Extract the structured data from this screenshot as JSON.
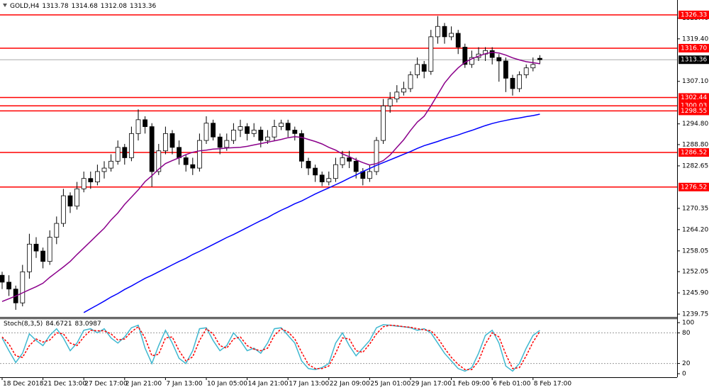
{
  "chart_data": [
    {
      "type": "candlestick",
      "title": "GOLD,H4",
      "categories": [
        "18 Dec 2018",
        null,
        null,
        null,
        null,
        null,
        "21 Dec 13:00",
        null,
        null,
        null,
        null,
        null,
        "27 Dec 17:00",
        null,
        null,
        null,
        null,
        null,
        "2 Jan 21:00",
        null,
        null,
        null,
        null,
        null,
        "7 Jan 13:00",
        null,
        null,
        null,
        null,
        null,
        "10 Jan 05:00",
        null,
        null,
        null,
        null,
        null,
        "14 Jan 21:00",
        null,
        null,
        null,
        null,
        null,
        "17 Jan 13:00",
        null,
        null,
        null,
        null,
        null,
        "22 Jan 09:00",
        null,
        null,
        null,
        null,
        null,
        "25 Jan 01:00",
        null,
        null,
        null,
        null,
        null,
        "29 Jan 17:00",
        null,
        null,
        null,
        null,
        null,
        "1 Feb 09:00",
        null,
        null,
        null,
        null,
        null,
        "6 Feb 01:00",
        null,
        null,
        null,
        null,
        null,
        "8 Feb 17:00",
        null
      ],
      "open": [
        1251,
        1249,
        1247,
        1243,
        1252,
        1260,
        1258,
        1255,
        1262,
        1266,
        1274,
        1271,
        1276,
        1279,
        1278,
        1281,
        1282,
        1284,
        1288,
        1285,
        1292,
        1296,
        1294,
        1281,
        1287,
        1292,
        1288,
        1285,
        1283,
        1282,
        1290,
        1295,
        1291,
        1288,
        1290,
        1293,
        1294,
        1292,
        1293,
        1290,
        1291,
        1294,
        1295,
        1293,
        1292,
        1284,
        1282,
        1280,
        1278,
        1279,
        1283,
        1285,
        1284,
        1281,
        1279,
        1281,
        1290,
        1300,
        1302,
        1304,
        1305,
        1309,
        1312,
        1310,
        1320,
        1323,
        1320,
        1321,
        1317,
        1312,
        1314,
        1315,
        1316,
        1314,
        1313,
        1308,
        1305,
        1309,
        1311,
        1313.78
      ],
      "high": [
        1252,
        1251,
        1248,
        1254,
        1263,
        1262,
        1259,
        1264,
        1268,
        1276,
        1275,
        1278,
        1281,
        1281,
        1283,
        1284,
        1286,
        1290,
        1289,
        1294,
        1299,
        1297,
        1295,
        1289,
        1294,
        1293,
        1290,
        1286,
        1285,
        1292,
        1297,
        1296,
        1292,
        1292,
        1295,
        1296,
        1295,
        1295,
        1294,
        1293,
        1296,
        1296,
        1296,
        1294,
        1293,
        1285,
        1283,
        1281,
        1281,
        1285,
        1287,
        1287,
        1285,
        1282,
        1283,
        1291,
        1302,
        1304,
        1306,
        1307,
        1310,
        1314,
        1313,
        1322,
        1326,
        1324,
        1323,
        1322,
        1318,
        1316,
        1317,
        1317,
        1317,
        1315,
        1314,
        1309,
        1310,
        1312,
        1314,
        1314.68
      ],
      "low": [
        1247,
        1245,
        1241,
        1242,
        1250,
        1256,
        1253,
        1254,
        1260,
        1265,
        1269,
        1270,
        1275,
        1276,
        1277,
        1279,
        1281,
        1283,
        1283,
        1284,
        1290,
        1292,
        1276.6,
        1280,
        1286,
        1286,
        1283,
        1281,
        1280,
        1281,
        1289,
        1290,
        1286,
        1287,
        1289,
        1291,
        1290,
        1291,
        1288,
        1289,
        1290,
        1293,
        1291,
        1290,
        1282,
        1280,
        1278,
        1276.8,
        1277,
        1278,
        1282,
        1282,
        1279,
        1277,
        1278,
        1280,
        1289,
        1298,
        1301,
        1303,
        1304,
        1308,
        1308,
        1309,
        1318,
        1318,
        1319,
        1315,
        1311,
        1311,
        1313,
        1313,
        1312,
        1307,
        1304,
        1303,
        1304,
        1308,
        1310,
        1312.08
      ],
      "close": [
        1249,
        1247,
        1243,
        1252,
        1260,
        1258,
        1255,
        1262,
        1266,
        1274,
        1271,
        1276,
        1279,
        1278,
        1281,
        1282,
        1284,
        1288,
        1285,
        1292,
        1296,
        1294,
        1281,
        1287,
        1292,
        1288,
        1285,
        1283,
        1282,
        1290,
        1295,
        1291,
        1288,
        1290,
        1293,
        1294,
        1292,
        1293,
        1290,
        1291,
        1294,
        1295,
        1293,
        1292,
        1284,
        1282,
        1280,
        1278,
        1279,
        1283,
        1285,
        1284,
        1281,
        1279,
        1281,
        1290,
        1300,
        1302,
        1304,
        1305,
        1309,
        1312,
        1310,
        1320,
        1323,
        1320,
        1321,
        1317,
        1312,
        1314,
        1315,
        1316,
        1314,
        1313,
        1308,
        1305,
        1309,
        1311,
        1312,
        1313.36
      ],
      "series": [
        {
          "color": "#8b008b",
          "values": [
            1243.4,
            1244.2,
            1245.0,
            1245.9,
            1246.8,
            1247.7,
            1248.7,
            1250.4,
            1251.9,
            1253.4,
            1255.0,
            1257.0,
            1258.9,
            1260.8,
            1262.7,
            1264.6,
            1267.0,
            1269.0,
            1271.5,
            1273.6,
            1275.7,
            1278.1,
            1279.8,
            1281.7,
            1283.3,
            1284.2,
            1285.0,
            1285.9,
            1286.6,
            1287.0,
            1287.2,
            1287.5,
            1287.6,
            1287.8,
            1287.9,
            1288.0,
            1288.3,
            1288.7,
            1289.1,
            1289.5,
            1289.9,
            1290.3,
            1290.8,
            1291.1,
            1290.9,
            1290.3,
            1289.7,
            1289.0,
            1288.0,
            1287.2,
            1286.1,
            1285.3,
            1284.4,
            1283.6,
            1282.9,
            1283.3,
            1284.2,
            1285.8,
            1288.0,
            1290.2,
            1292.9,
            1295.3,
            1297.0,
            1300.0,
            1303.3,
            1306.6,
            1309.0,
            1311.0,
            1312.6,
            1313.6,
            1314.4,
            1315.1,
            1315.5,
            1315.3,
            1314.7,
            1313.9,
            1313.3,
            1312.8,
            1312.5,
            1312.2
          ]
        },
        {
          "color": "#0000ff",
          "values": [
            null,
            null,
            null,
            null,
            null,
            null,
            null,
            null,
            null,
            null,
            null,
            null,
            1240.2,
            1241.3,
            1242.4,
            1243.5,
            1244.7,
            1245.7,
            1246.9,
            1247.9,
            1249.0,
            1250.1,
            1251.0,
            1252.0,
            1253.0,
            1254.0,
            1255.0,
            1255.9,
            1257.0,
            1257.9,
            1258.9,
            1259.9,
            1260.9,
            1261.9,
            1262.8,
            1263.8,
            1264.8,
            1265.8,
            1266.8,
            1267.7,
            1268.8,
            1269.8,
            1270.7,
            1271.7,
            1272.5,
            1273.5,
            1274.5,
            1275.4,
            1276.3,
            1277.2,
            1278.1,
            1279.1,
            1280.0,
            1281.0,
            1281.9,
            1282.8,
            1283.6,
            1284.4,
            1285.2,
            1286.0,
            1286.8,
            1287.7,
            1288.5,
            1289.1,
            1289.7,
            1290.4,
            1291.0,
            1291.6,
            1292.3,
            1292.9,
            1293.6,
            1294.3,
            1294.9,
            1295.4,
            1295.8,
            1296.2,
            1296.5,
            1296.9,
            1297.2,
            1297.6
          ]
        }
      ],
      "levels": [
        1326.33,
        {
          "value": 1316.7,
          "label": "1316.70"
        },
        1302.44,
        1300.03,
        1298.55,
        1286.52,
        1276.52
      ],
      "level_color": "#ff0000",
      "ylim": [
        1238.93,
        1330.64
      ],
      "yticks": [
        {
          "value": 1325.4,
          "label": "1325.40"
        },
        {
          "value": 1319.4,
          "label": "1319.40"
        },
        {
          "value": 1307.1,
          "label": "1307.10"
        },
        {
          "value": 1294.8,
          "label": "1294.80"
        },
        {
          "value": 1288.8,
          "label": "1288.80"
        },
        1282.65,
        1270.35,
        {
          "value": 1264.2,
          "label": "1264.20"
        },
        1258.05,
        1252.05,
        {
          "value": 1245.9,
          "label": "1245.90"
        },
        1239.75
      ]
    },
    {
      "type": "line",
      "title": "Stoch(8,3,5)",
      "series": [
        {
          "color": "#40b8d0",
          "values": [
            70,
            45,
            22,
            40,
            78,
            65,
            55,
            75,
            88,
            70,
            45,
            60,
            85,
            88,
            80,
            88,
            70,
            60,
            72,
            90,
            95,
            50,
            20,
            55,
            85,
            60,
            30,
            20,
            45,
            88,
            90,
            65,
            45,
            55,
            80,
            65,
            45,
            50,
            40,
            60,
            88,
            90,
            75,
            60,
            25,
            10,
            8,
            12,
            20,
            60,
            80,
            55,
            35,
            50,
            65,
            90,
            96,
            95,
            93,
            92,
            90,
            85,
            88,
            80,
            60,
            40,
            25,
            10,
            5,
            12,
            40,
            75,
            85,
            60,
            15,
            5,
            20,
            50,
            75,
            84.6721
          ]
        },
        {
          "color": "#ff0000",
          "dashed": true,
          "values": [
            72,
            58,
            35,
            32,
            55,
            68,
            62,
            66,
            80,
            78,
            60,
            55,
            72,
            85,
            84,
            84,
            78,
            66,
            68,
            82,
            92,
            70,
            35,
            38,
            70,
            72,
            45,
            25,
            33,
            65,
            88,
            78,
            55,
            50,
            68,
            72,
            55,
            48,
            45,
            50,
            75,
            88,
            82,
            68,
            42,
            18,
            10,
            10,
            15,
            40,
            70,
            68,
            45,
            42,
            58,
            78,
            92,
            95,
            94,
            92,
            91,
            88,
            86,
            84,
            70,
            50,
            32,
            18,
            8,
            8,
            25,
            58,
            80,
            72,
            38,
            10,
            12,
            35,
            62,
            83.0987
          ]
        }
      ],
      "levels": [
        20,
        80
      ],
      "ylim": [
        0,
        100
      ],
      "yticks": [
        0,
        20,
        80,
        100
      ]
    }
  ]
}
